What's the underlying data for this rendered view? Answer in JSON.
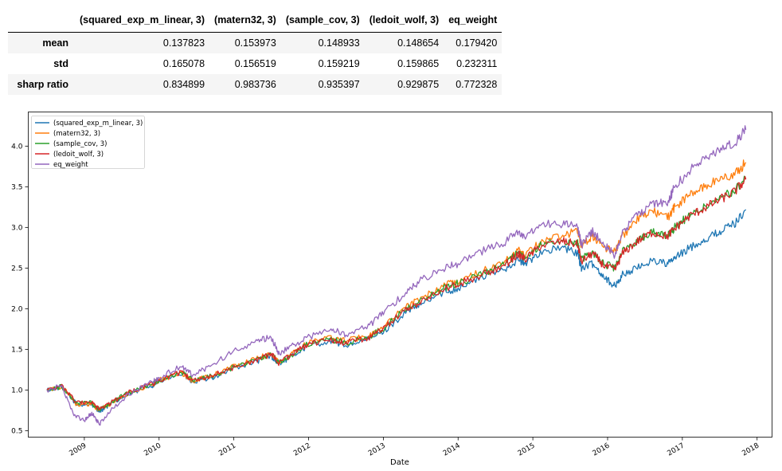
{
  "table": {
    "columns": [
      "(squared_exp_m_linear, 3)",
      "(matern32, 3)",
      "(sample_cov, 3)",
      "(ledoit_wolf, 3)",
      "eq_weight"
    ],
    "rows": [
      {
        "label": "mean",
        "values": [
          "0.137823",
          "0.153973",
          "0.148933",
          "0.148654",
          "0.179420"
        ]
      },
      {
        "label": "std",
        "values": [
          "0.165078",
          "0.156519",
          "0.159219",
          "0.159865",
          "0.232311"
        ]
      },
      {
        "label": "sharp ratio",
        "values": [
          "0.834899",
          "0.983736",
          "0.935397",
          "0.929875",
          "0.772328"
        ]
      }
    ]
  },
  "chart_data": {
    "type": "line",
    "xlabel": "Date",
    "ylabel": "",
    "title": "",
    "xlim": [
      2008.25,
      2018.2
    ],
    "ylim": [
      0.42,
      4.42
    ],
    "x_ticks": [
      2009,
      2010,
      2011,
      2012,
      2013,
      2014,
      2015,
      2016,
      2017,
      2018
    ],
    "y_ticks": [
      0.5,
      1.0,
      1.5,
      2.0,
      2.5,
      3.0,
      3.5,
      4.0
    ],
    "grid": false,
    "legend": "upper-left",
    "series": [
      {
        "name": "(squared_exp_m_linear, 3)",
        "color": "#1f77b4",
        "points": [
          [
            2008.5,
            1.0
          ],
          [
            2008.7,
            1.04
          ],
          [
            2008.9,
            0.82
          ],
          [
            2009.1,
            0.82
          ],
          [
            2009.2,
            0.74
          ],
          [
            2009.35,
            0.82
          ],
          [
            2009.6,
            0.95
          ],
          [
            2009.9,
            1.05
          ],
          [
            2010.0,
            1.1
          ],
          [
            2010.3,
            1.2
          ],
          [
            2010.45,
            1.1
          ],
          [
            2010.7,
            1.15
          ],
          [
            2011.0,
            1.27
          ],
          [
            2011.3,
            1.35
          ],
          [
            2011.5,
            1.42
          ],
          [
            2011.6,
            1.32
          ],
          [
            2011.8,
            1.43
          ],
          [
            2012.0,
            1.55
          ],
          [
            2012.3,
            1.6
          ],
          [
            2012.5,
            1.55
          ],
          [
            2012.8,
            1.62
          ],
          [
            2013.0,
            1.72
          ],
          [
            2013.3,
            1.95
          ],
          [
            2013.5,
            2.05
          ],
          [
            2013.8,
            2.2
          ],
          [
            2014.0,
            2.25
          ],
          [
            2014.3,
            2.38
          ],
          [
            2014.6,
            2.48
          ],
          [
            2014.8,
            2.6
          ],
          [
            2014.9,
            2.55
          ],
          [
            2015.1,
            2.7
          ],
          [
            2015.4,
            2.75
          ],
          [
            2015.6,
            2.68
          ],
          [
            2015.65,
            2.5
          ],
          [
            2015.8,
            2.55
          ],
          [
            2015.95,
            2.4
          ],
          [
            2016.1,
            2.27
          ],
          [
            2016.2,
            2.42
          ],
          [
            2016.4,
            2.5
          ],
          [
            2016.6,
            2.6
          ],
          [
            2016.8,
            2.55
          ],
          [
            2016.9,
            2.62
          ],
          [
            2017.1,
            2.75
          ],
          [
            2017.3,
            2.85
          ],
          [
            2017.5,
            2.95
          ],
          [
            2017.7,
            3.05
          ],
          [
            2017.85,
            3.22
          ]
        ]
      },
      {
        "name": "(matern32, 3)",
        "color": "#ff7f0e",
        "points": [
          [
            2008.5,
            1.0
          ],
          [
            2008.7,
            1.04
          ],
          [
            2008.9,
            0.82
          ],
          [
            2009.1,
            0.83
          ],
          [
            2009.2,
            0.75
          ],
          [
            2009.35,
            0.83
          ],
          [
            2009.6,
            0.96
          ],
          [
            2009.9,
            1.06
          ],
          [
            2010.0,
            1.12
          ],
          [
            2010.3,
            1.21
          ],
          [
            2010.45,
            1.11
          ],
          [
            2010.7,
            1.17
          ],
          [
            2011.0,
            1.29
          ],
          [
            2011.3,
            1.38
          ],
          [
            2011.5,
            1.45
          ],
          [
            2011.6,
            1.35
          ],
          [
            2011.8,
            1.46
          ],
          [
            2012.0,
            1.58
          ],
          [
            2012.3,
            1.64
          ],
          [
            2012.5,
            1.6
          ],
          [
            2012.8,
            1.67
          ],
          [
            2013.0,
            1.78
          ],
          [
            2013.3,
            2.02
          ],
          [
            2013.5,
            2.12
          ],
          [
            2013.8,
            2.28
          ],
          [
            2014.0,
            2.34
          ],
          [
            2014.3,
            2.45
          ],
          [
            2014.6,
            2.56
          ],
          [
            2014.8,
            2.72
          ],
          [
            2014.9,
            2.66
          ],
          [
            2015.1,
            2.82
          ],
          [
            2015.4,
            2.9
          ],
          [
            2015.6,
            2.95
          ],
          [
            2015.65,
            2.78
          ],
          [
            2015.8,
            2.9
          ],
          [
            2015.95,
            2.75
          ],
          [
            2016.1,
            2.7
          ],
          [
            2016.2,
            2.9
          ],
          [
            2016.4,
            3.1
          ],
          [
            2016.6,
            3.2
          ],
          [
            2016.8,
            3.12
          ],
          [
            2016.9,
            3.25
          ],
          [
            2017.1,
            3.4
          ],
          [
            2017.3,
            3.5
          ],
          [
            2017.5,
            3.6
          ],
          [
            2017.7,
            3.65
          ],
          [
            2017.85,
            3.8
          ]
        ]
      },
      {
        "name": "(sample_cov, 3)",
        "color": "#2ca02c",
        "points": [
          [
            2008.5,
            1.0
          ],
          [
            2008.7,
            1.04
          ],
          [
            2008.9,
            0.84
          ],
          [
            2009.1,
            0.84
          ],
          [
            2009.2,
            0.76
          ],
          [
            2009.35,
            0.84
          ],
          [
            2009.6,
            0.97
          ],
          [
            2009.9,
            1.07
          ],
          [
            2010.0,
            1.12
          ],
          [
            2010.3,
            1.22
          ],
          [
            2010.45,
            1.12
          ],
          [
            2010.7,
            1.17
          ],
          [
            2011.0,
            1.28
          ],
          [
            2011.3,
            1.37
          ],
          [
            2011.5,
            1.44
          ],
          [
            2011.6,
            1.33
          ],
          [
            2011.8,
            1.45
          ],
          [
            2012.0,
            1.57
          ],
          [
            2012.3,
            1.62
          ],
          [
            2012.5,
            1.58
          ],
          [
            2012.8,
            1.65
          ],
          [
            2013.0,
            1.76
          ],
          [
            2013.3,
            2.0
          ],
          [
            2013.5,
            2.1
          ],
          [
            2013.8,
            2.25
          ],
          [
            2014.0,
            2.31
          ],
          [
            2014.3,
            2.42
          ],
          [
            2014.6,
            2.53
          ],
          [
            2014.8,
            2.68
          ],
          [
            2014.9,
            2.62
          ],
          [
            2015.1,
            2.78
          ],
          [
            2015.4,
            2.84
          ],
          [
            2015.6,
            2.8
          ],
          [
            2015.65,
            2.6
          ],
          [
            2015.8,
            2.7
          ],
          [
            2015.95,
            2.55
          ],
          [
            2016.1,
            2.5
          ],
          [
            2016.2,
            2.7
          ],
          [
            2016.4,
            2.85
          ],
          [
            2016.6,
            2.95
          ],
          [
            2016.8,
            2.9
          ],
          [
            2016.9,
            3.0
          ],
          [
            2017.1,
            3.15
          ],
          [
            2017.3,
            3.25
          ],
          [
            2017.5,
            3.35
          ],
          [
            2017.7,
            3.45
          ],
          [
            2017.85,
            3.6
          ]
        ]
      },
      {
        "name": "(ledoit_wolf, 3)",
        "color": "#d62728",
        "points": [
          [
            2008.5,
            1.0
          ],
          [
            2008.7,
            1.04
          ],
          [
            2008.9,
            0.84
          ],
          [
            2009.1,
            0.84
          ],
          [
            2009.2,
            0.76
          ],
          [
            2009.35,
            0.84
          ],
          [
            2009.6,
            0.97
          ],
          [
            2009.9,
            1.07
          ],
          [
            2010.0,
            1.12
          ],
          [
            2010.3,
            1.22
          ],
          [
            2010.45,
            1.12
          ],
          [
            2010.7,
            1.17
          ],
          [
            2011.0,
            1.28
          ],
          [
            2011.3,
            1.37
          ],
          [
            2011.5,
            1.44
          ],
          [
            2011.6,
            1.33
          ],
          [
            2011.8,
            1.45
          ],
          [
            2012.0,
            1.57
          ],
          [
            2012.3,
            1.62
          ],
          [
            2012.5,
            1.58
          ],
          [
            2012.8,
            1.64
          ],
          [
            2013.0,
            1.75
          ],
          [
            2013.3,
            1.99
          ],
          [
            2013.5,
            2.09
          ],
          [
            2013.8,
            2.24
          ],
          [
            2014.0,
            2.3
          ],
          [
            2014.3,
            2.41
          ],
          [
            2014.6,
            2.52
          ],
          [
            2014.8,
            2.67
          ],
          [
            2014.9,
            2.61
          ],
          [
            2015.1,
            2.77
          ],
          [
            2015.4,
            2.83
          ],
          [
            2015.6,
            2.79
          ],
          [
            2015.65,
            2.58
          ],
          [
            2015.8,
            2.68
          ],
          [
            2015.95,
            2.53
          ],
          [
            2016.1,
            2.48
          ],
          [
            2016.2,
            2.68
          ],
          [
            2016.4,
            2.83
          ],
          [
            2016.6,
            2.94
          ],
          [
            2016.8,
            2.89
          ],
          [
            2016.9,
            2.99
          ],
          [
            2017.1,
            3.14
          ],
          [
            2017.3,
            3.24
          ],
          [
            2017.5,
            3.34
          ],
          [
            2017.7,
            3.44
          ],
          [
            2017.85,
            3.59
          ]
        ]
      },
      {
        "name": "eq_weight",
        "color": "#9467bd",
        "points": [
          [
            2008.5,
            1.0
          ],
          [
            2008.7,
            1.05
          ],
          [
            2008.85,
            0.7
          ],
          [
            2009.0,
            0.62
          ],
          [
            2009.1,
            0.72
          ],
          [
            2009.2,
            0.58
          ],
          [
            2009.35,
            0.75
          ],
          [
            2009.6,
            0.95
          ],
          [
            2009.9,
            1.1
          ],
          [
            2010.0,
            1.15
          ],
          [
            2010.3,
            1.3
          ],
          [
            2010.45,
            1.18
          ],
          [
            2010.7,
            1.3
          ],
          [
            2011.0,
            1.48
          ],
          [
            2011.3,
            1.6
          ],
          [
            2011.5,
            1.65
          ],
          [
            2011.6,
            1.45
          ],
          [
            2011.8,
            1.55
          ],
          [
            2012.0,
            1.65
          ],
          [
            2012.3,
            1.75
          ],
          [
            2012.5,
            1.68
          ],
          [
            2012.8,
            1.78
          ],
          [
            2013.0,
            1.95
          ],
          [
            2013.3,
            2.2
          ],
          [
            2013.5,
            2.35
          ],
          [
            2013.8,
            2.5
          ],
          [
            2014.0,
            2.55
          ],
          [
            2014.3,
            2.7
          ],
          [
            2014.6,
            2.8
          ],
          [
            2014.8,
            2.95
          ],
          [
            2014.9,
            2.85
          ],
          [
            2015.1,
            3.05
          ],
          [
            2015.4,
            3.05
          ],
          [
            2015.6,
            3.0
          ],
          [
            2015.65,
            2.78
          ],
          [
            2015.8,
            2.95
          ],
          [
            2015.95,
            2.8
          ],
          [
            2016.1,
            2.65
          ],
          [
            2016.2,
            2.95
          ],
          [
            2016.4,
            3.15
          ],
          [
            2016.6,
            3.3
          ],
          [
            2016.8,
            3.3
          ],
          [
            2016.9,
            3.5
          ],
          [
            2017.1,
            3.7
          ],
          [
            2017.3,
            3.85
          ],
          [
            2017.5,
            3.95
          ],
          [
            2017.7,
            4.05
          ],
          [
            2017.85,
            4.2
          ]
        ]
      }
    ]
  }
}
